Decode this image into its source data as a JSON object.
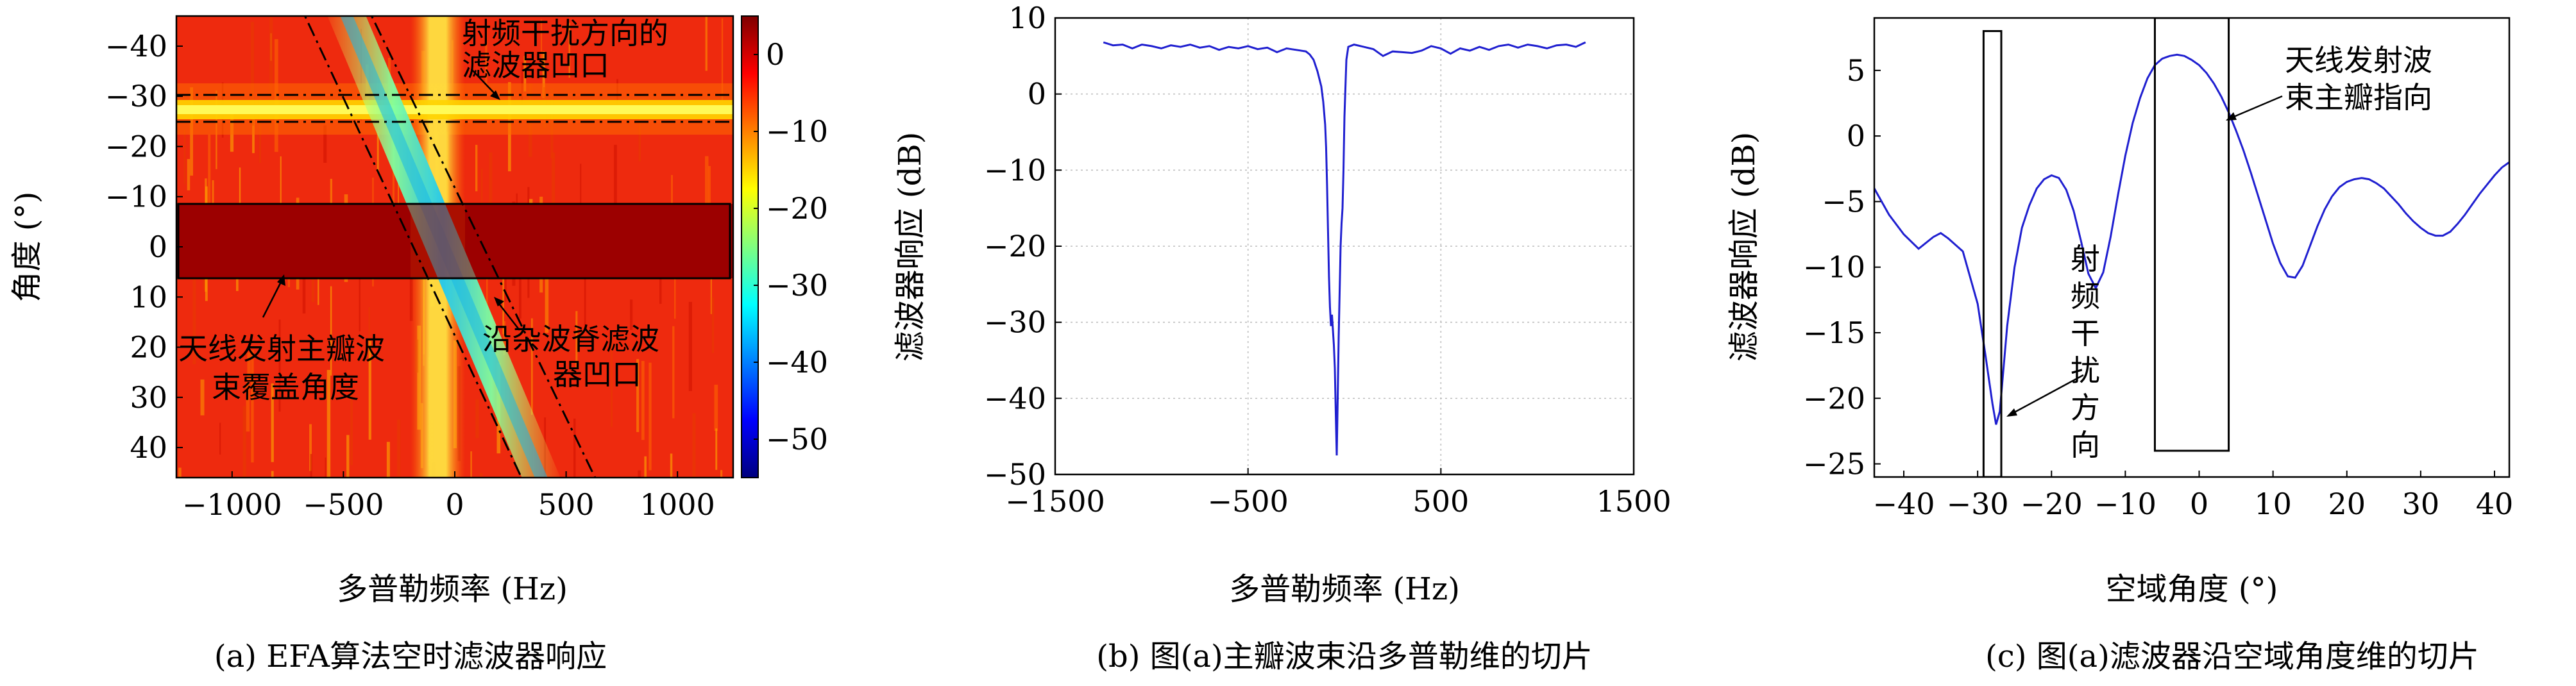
{
  "chart_data": [
    {
      "type": "heatmap",
      "caption": "(a) EFA算法空时滤波器响应",
      "xlabel": "多普勒频率 (Hz)",
      "ylabel": "角度 (°)",
      "xlim": [
        -1250,
        1250
      ],
      "ylim": [
        -46,
        46
      ],
      "y_inverted": true,
      "x_ticks": [
        -1000,
        -500,
        0,
        500,
        1000
      ],
      "y_ticks": [
        -40,
        -30,
        -20,
        -10,
        0,
        10,
        20,
        30,
        40
      ],
      "colorbar": {
        "range": [
          -55,
          5
        ],
        "ticks": [
          0,
          -10,
          -20,
          -30,
          -40,
          -50
        ],
        "colormap": "jet"
      },
      "features": {
        "clutter_ridge": {
          "from": [
            -500,
            -46
          ],
          "to": [
            350,
            46
          ]
        },
        "rfi_notch_angle": -27,
        "mainbeam_angles": [
          -10,
          5
        ],
        "low_doppler_band": [
          -180,
          20
        ]
      },
      "annotations": [
        {
          "text": [
            "射频干扰方向的",
            "滤波器凹口"
          ]
        },
        {
          "text": [
            "天线发射主瓣波",
            "束覆盖角度"
          ]
        },
        {
          "text": [
            "沿杂波脊滤波",
            "器凹口"
          ]
        }
      ]
    },
    {
      "type": "line",
      "caption": "(b) 图(a)主瓣波束沿多普勒维的切片",
      "xlabel": "多普勒频率 (Hz)",
      "ylabel": "滤波器响应 (dB)",
      "xlim": [
        -1500,
        1500
      ],
      "ylim": [
        -50,
        10
      ],
      "x_ticks": [
        -1500,
        -500,
        500,
        1500
      ],
      "y_ticks": [
        10,
        0,
        -10,
        -20,
        -30,
        -40,
        -50
      ],
      "grid": true,
      "color": "#1f1fd0",
      "x": [
        -1250,
        -1200,
        -1150,
        -1100,
        -1050,
        -1000,
        -950,
        -900,
        -850,
        -800,
        -750,
        -700,
        -650,
        -600,
        -550,
        -500,
        -450,
        -400,
        -350,
        -300,
        -250,
        -200,
        -180,
        -160,
        -140,
        -120,
        -110,
        -100,
        -95,
        -90,
        -85,
        -80,
        -75,
        -70,
        -65,
        -60,
        -55,
        -50,
        -45,
        -40,
        -35,
        -30,
        -25,
        -20,
        -15,
        -10,
        -5,
        0,
        10,
        20,
        50,
        100,
        150,
        200,
        250,
        300,
        350,
        400,
        450,
        500,
        550,
        600,
        650,
        700,
        750,
        800,
        850,
        900,
        950,
        1000,
        1050,
        1100,
        1150,
        1200,
        1250
      ],
      "y": [
        6.8,
        6.4,
        6.5,
        6.0,
        6.5,
        6.3,
        6.0,
        6.4,
        6.2,
        6.5,
        6.1,
        6.3,
        5.8,
        6.2,
        6.0,
        6.3,
        5.9,
        6.1,
        5.5,
        6.0,
        5.8,
        5.6,
        5.2,
        4.5,
        3.0,
        1.0,
        -1.0,
        -4.0,
        -7.0,
        -12.0,
        -18.0,
        -24.0,
        -28.0,
        -30.5,
        -29.0,
        -31.0,
        -33.0,
        -36.0,
        -42.0,
        -47.5,
        -40.0,
        -32.0,
        -26.0,
        -20.0,
        -17.0,
        -15.0,
        -10.0,
        -3.0,
        4.5,
        6.2,
        6.5,
        6.2,
        5.9,
        5.0,
        5.6,
        5.5,
        5.4,
        5.7,
        6.3,
        6.0,
        5.3,
        6.0,
        5.7,
        6.2,
        5.8,
        6.3,
        6.5,
        6.1,
        6.5,
        6.3,
        6.0,
        6.4,
        6.5,
        6.2,
        6.8
      ]
    },
    {
      "type": "line",
      "caption": "(c) 图(a)滤波器沿空域角度维的切片",
      "xlabel": "空域角度 (°)",
      "ylabel": "滤波器响应 (dB)",
      "xlim": [
        -44,
        42
      ],
      "ylim": [
        -26,
        9
      ],
      "x_ticks": [
        -40,
        -30,
        -20,
        -10,
        0,
        10,
        20,
        30,
        40
      ],
      "y_ticks": [
        5,
        0,
        -5,
        -10,
        -15,
        -20,
        -25
      ],
      "grid": false,
      "color": "#1f1fd0",
      "x": [
        -44,
        -42,
        -40,
        -38,
        -36,
        -35,
        -34,
        -32,
        -30,
        -29,
        -28,
        -27.5,
        -27,
        -26,
        -25,
        -24,
        -23,
        -22,
        -21,
        -20,
        -19,
        -18,
        -17,
        -16,
        -15,
        -14,
        -13,
        -12,
        -11,
        -10,
        -9,
        -8,
        -7,
        -6,
        -5,
        -4,
        -3,
        -2,
        -1,
        0,
        1,
        2,
        3,
        4,
        5,
        6,
        7,
        8,
        9,
        10,
        11,
        12,
        13,
        14,
        15,
        16,
        17,
        18,
        19,
        20,
        21,
        22,
        23,
        24,
        25,
        26,
        27,
        28,
        29,
        30,
        31,
        32,
        33,
        34,
        35,
        36,
        37,
        38,
        39,
        40,
        41,
        42
      ],
      "y": [
        -4,
        -6,
        -7.5,
        -8.6,
        -7.7,
        -7.4,
        -7.8,
        -8.8,
        -12.8,
        -16.5,
        -20.4,
        -22.0,
        -21.0,
        -14.5,
        -10.0,
        -7.0,
        -5.3,
        -4.0,
        -3.3,
        -3.0,
        -3.2,
        -4.1,
        -5.7,
        -8.0,
        -10.5,
        -11.6,
        -10.4,
        -7.7,
        -4.5,
        -1.5,
        1.0,
        2.9,
        4.4,
        5.4,
        5.9,
        6.1,
        6.2,
        6.1,
        5.8,
        5.4,
        4.8,
        4.0,
        3.0,
        1.8,
        0.4,
        -1.1,
        -2.8,
        -4.6,
        -6.4,
        -8.2,
        -9.7,
        -10.7,
        -10.8,
        -9.9,
        -8.4,
        -6.9,
        -5.6,
        -4.6,
        -3.9,
        -3.5,
        -3.3,
        -3.2,
        -3.3,
        -3.6,
        -4.0,
        -4.6,
        -5.2,
        -5.9,
        -6.5,
        -7.0,
        -7.4,
        -7.6,
        -7.6,
        -7.3,
        -6.7,
        -6.0,
        -5.2,
        -4.4,
        -3.7,
        -3.0,
        -2.4,
        -2.0
      ],
      "boxes": [
        {
          "xlim": [
            -29.2,
            -26.8
          ],
          "ylim": [
            -26,
            8
          ]
        },
        {
          "xlim": [
            -6,
            4
          ],
          "ylim": [
            -24,
            9
          ]
        }
      ],
      "annotations": [
        {
          "text": [
            "射",
            "频",
            "干",
            "扰",
            "方",
            "向"
          ]
        },
        {
          "text": [
            "天线发射波",
            "束主瓣指向"
          ]
        }
      ]
    }
  ]
}
